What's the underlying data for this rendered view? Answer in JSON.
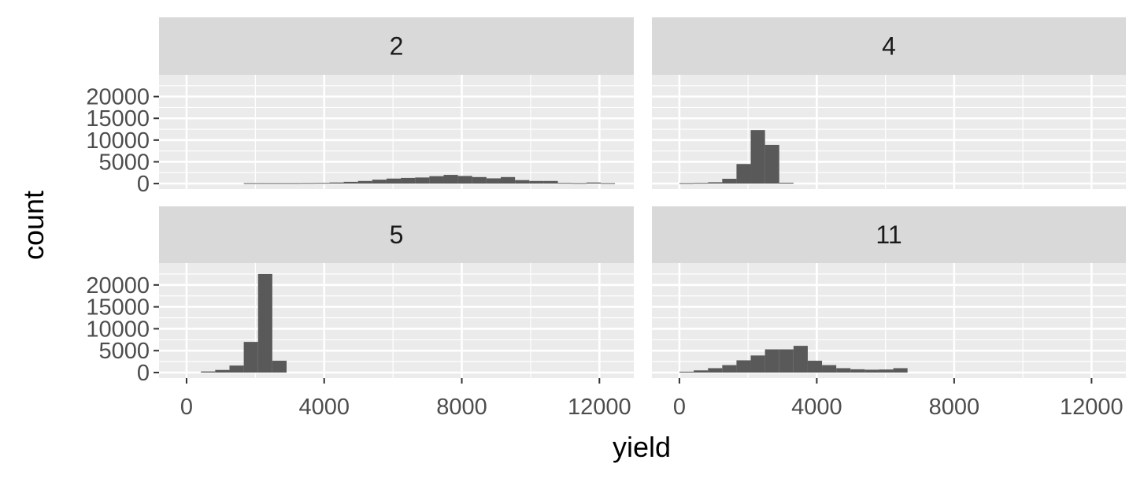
{
  "chart_data": {
    "type": "bar",
    "subtype": "faceted-histogram",
    "xlabel": "yield",
    "ylabel": "count",
    "xlim": [
      -800,
      13000
    ],
    "ylim": [
      0,
      22500
    ],
    "x_ticks": [
      0,
      4000,
      8000,
      12000
    ],
    "x_tick_labels": [
      "0",
      "4000",
      "8000",
      "12000"
    ],
    "y_ticks": [
      0,
      5000,
      10000,
      15000,
      20000
    ],
    "y_tick_labels": [
      "0",
      "5000",
      "10000",
      "15000",
      "20000"
    ],
    "bin_width": 415,
    "colors": {
      "panel": "#ebebeb",
      "grid": "#ffffff",
      "strip": "#d9d9d9",
      "bar": "#595959"
    },
    "panels": [
      {
        "label": "2",
        "bins": [
          {
            "x": 1870,
            "count": 100
          },
          {
            "x": 2285,
            "count": 100
          },
          {
            "x": 2700,
            "count": 100
          },
          {
            "x": 3115,
            "count": 100
          },
          {
            "x": 3530,
            "count": 120
          },
          {
            "x": 3945,
            "count": 150
          },
          {
            "x": 4360,
            "count": 250
          },
          {
            "x": 4775,
            "count": 400
          },
          {
            "x": 5190,
            "count": 600
          },
          {
            "x": 5605,
            "count": 900
          },
          {
            "x": 6020,
            "count": 1150
          },
          {
            "x": 6435,
            "count": 1300
          },
          {
            "x": 6850,
            "count": 1400
          },
          {
            "x": 7265,
            "count": 1700
          },
          {
            "x": 7680,
            "count": 2000
          },
          {
            "x": 8095,
            "count": 1750
          },
          {
            "x": 8510,
            "count": 1500
          },
          {
            "x": 8925,
            "count": 1200
          },
          {
            "x": 9340,
            "count": 1500
          },
          {
            "x": 9755,
            "count": 800
          },
          {
            "x": 10170,
            "count": 600
          },
          {
            "x": 10585,
            "count": 600
          },
          {
            "x": 11000,
            "count": 150
          },
          {
            "x": 11415,
            "count": 100
          },
          {
            "x": 11830,
            "count": 250
          },
          {
            "x": 12245,
            "count": 100
          }
        ]
      },
      {
        "label": "4",
        "bins": [
          {
            "x": 210,
            "count": 100
          },
          {
            "x": 625,
            "count": 150
          },
          {
            "x": 1040,
            "count": 300
          },
          {
            "x": 1455,
            "count": 1100
          },
          {
            "x": 1870,
            "count": 4500
          },
          {
            "x": 2285,
            "count": 12300
          },
          {
            "x": 2700,
            "count": 8900
          },
          {
            "x": 3115,
            "count": 200
          }
        ]
      },
      {
        "label": "5",
        "bins": [
          {
            "x": 625,
            "count": 250
          },
          {
            "x": 1040,
            "count": 600
          },
          {
            "x": 1455,
            "count": 1600
          },
          {
            "x": 1870,
            "count": 7000
          },
          {
            "x": 2285,
            "count": 22500
          },
          {
            "x": 2700,
            "count": 2700
          }
        ]
      },
      {
        "label": "11",
        "bins": [
          {
            "x": 210,
            "count": 200
          },
          {
            "x": 625,
            "count": 500
          },
          {
            "x": 1040,
            "count": 1000
          },
          {
            "x": 1455,
            "count": 1700
          },
          {
            "x": 1870,
            "count": 2800
          },
          {
            "x": 2285,
            "count": 3900
          },
          {
            "x": 2700,
            "count": 5300
          },
          {
            "x": 3115,
            "count": 5300
          },
          {
            "x": 3530,
            "count": 6100
          },
          {
            "x": 3945,
            "count": 2700
          },
          {
            "x": 4360,
            "count": 1700
          },
          {
            "x": 4775,
            "count": 1000
          },
          {
            "x": 5190,
            "count": 750
          },
          {
            "x": 5605,
            "count": 650
          },
          {
            "x": 6020,
            "count": 700
          },
          {
            "x": 6435,
            "count": 1000
          }
        ]
      }
    ]
  }
}
